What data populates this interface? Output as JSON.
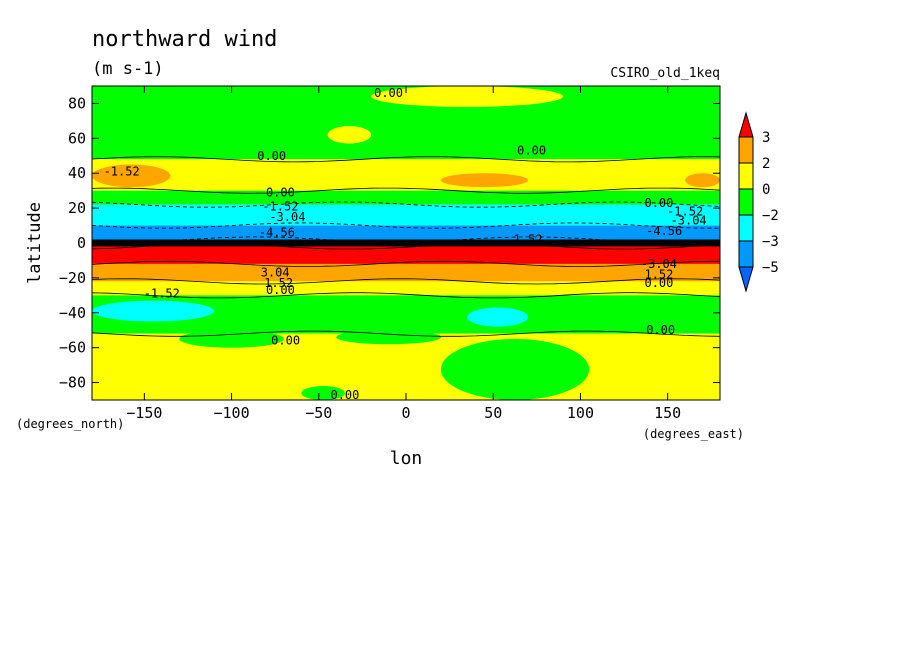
{
  "chart_data": {
    "type": "heatmap",
    "title": "northward wind",
    "units": "(m s-1)",
    "model": "CSIRO_old_1keq",
    "xlabel": "lon",
    "ylabel": "latitude",
    "x_units": "(degrees_east)",
    "y_units": "(degrees_north)",
    "xlim": [
      -180,
      180
    ],
    "ylim": [
      -90,
      90
    ],
    "x_ticks": [
      -150,
      -100,
      -50,
      0,
      50,
      100,
      150
    ],
    "y_ticks": [
      80,
      60,
      40,
      20,
      0,
      -20,
      -40,
      -60,
      -80
    ],
    "x_tick_labels": [
      "−150",
      "−100",
      "−50",
      "0",
      "50",
      "100",
      "150"
    ],
    "y_tick_labels": [
      "80",
      "60",
      "40",
      "20",
      "0",
      "−20",
      "−40",
      "−60",
      "−80"
    ],
    "colorbar": {
      "labels": [
        "3",
        "2",
        "0",
        "−2",
        "−3",
        "−5"
      ],
      "colors": [
        "#ff0000",
        "#ffa500",
        "#ffff00",
        "#00ff00",
        "#00ffff",
        "#0099ff",
        "#0066ff"
      ]
    },
    "bands": [
      {
        "lat": [
          48,
          90
        ],
        "color": "#00ff00"
      },
      {
        "lat": [
          30,
          48
        ],
        "color": "#ffff00"
      },
      {
        "lat": [
          22,
          30
        ],
        "color": "#00ff00"
      },
      {
        "lat": [
          10,
          22
        ],
        "color": "#00ffff"
      },
      {
        "lat": [
          2,
          10
        ],
        "color": "#0099ff"
      },
      {
        "lat": [
          -2,
          2
        ],
        "color": "#000000"
      },
      {
        "lat": [
          -12,
          -2
        ],
        "color": "#ff0000"
      },
      {
        "lat": [
          -22,
          -12
        ],
        "color": "#ffa500"
      },
      {
        "lat": [
          -30,
          -22
        ],
        "color": "#ffff00"
      },
      {
        "lat": [
          -52,
          -30
        ],
        "color": "#00ff00"
      },
      {
        "lat": [
          -90,
          -52
        ],
        "color": "#ffff00"
      }
    ],
    "patches": [
      {
        "lon": [
          -180,
          -135
        ],
        "lat": [
          32,
          45
        ],
        "color": "#ffa500"
      },
      {
        "lon": [
          20,
          70
        ],
        "lat": [
          32,
          40
        ],
        "color": "#ffa500"
      },
      {
        "lon": [
          160,
          180
        ],
        "lat": [
          32,
          40
        ],
        "color": "#ffa500"
      },
      {
        "lon": [
          -180,
          -110
        ],
        "lat": [
          -45,
          -33
        ],
        "color": "#00ffff"
      },
      {
        "lon": [
          35,
          70
        ],
        "lat": [
          -48,
          -37
        ],
        "color": "#00ffff"
      },
      {
        "lon": [
          -20,
          90
        ],
        "lat": [
          78,
          90
        ],
        "color": "#ffff00"
      },
      {
        "lon": [
          -45,
          -20
        ],
        "lat": [
          57,
          67
        ],
        "color": "#ffff00"
      },
      {
        "lon": [
          -130,
          -70
        ],
        "lat": [
          -60,
          -50
        ],
        "color": "#00ff00"
      },
      {
        "lon": [
          -40,
          20
        ],
        "lat": [
          -58,
          -50
        ],
        "color": "#00ff00"
      },
      {
        "lon": [
          -60,
          -35
        ],
        "lat": [
          -90,
          -82
        ],
        "color": "#00ff00"
      },
      {
        "lon": [
          20,
          105
        ],
        "lat": [
          -90,
          -55
        ],
        "color": "#00ff00"
      }
    ],
    "contour_labels": [
      {
        "text": "0.00",
        "lon": -10,
        "lat": 86
      },
      {
        "text": "0.00",
        "lon": -77,
        "lat": 50
      },
      {
        "text": "0.00",
        "lon": 72,
        "lat": 53
      },
      {
        "text": "-1.52",
        "lon": -163,
        "lat": 41
      },
      {
        "text": "0.00",
        "lon": -72,
        "lat": 29
      },
      {
        "text": "-1.52",
        "lon": -72,
        "lat": 21
      },
      {
        "text": "-3.04",
        "lon": -68,
        "lat": 15
      },
      {
        "text": "-4.56",
        "lon": -74,
        "lat": 6
      },
      {
        "text": "0.00",
        "lon": 145,
        "lat": 23
      },
      {
        "text": "-1.52",
        "lon": 160,
        "lat": 18
      },
      {
        "text": "-3.04",
        "lon": 162,
        "lat": 13
      },
      {
        "text": "-4.56",
        "lon": 148,
        "lat": 7
      },
      {
        "text": "1.52",
        "lon": 70,
        "lat": 2
      },
      {
        "text": "-3.04",
        "lon": 145,
        "lat": -12
      },
      {
        "text": "1.52",
        "lon": 145,
        "lat": -18
      },
      {
        "text": "3.04",
        "lon": -75,
        "lat": -17
      },
      {
        "text": "1.52",
        "lon": -73,
        "lat": -23
      },
      {
        "text": "0.00",
        "lon": -72,
        "lat": -27
      },
      {
        "text": "0.00",
        "lon": 145,
        "lat": -23
      },
      {
        "text": "-1.52",
        "lon": -140,
        "lat": -29
      },
      {
        "text": "0.00",
        "lon": -69,
        "lat": -56
      },
      {
        "text": "0.00",
        "lon": 146,
        "lat": -50
      },
      {
        "text": "0.00",
        "lon": -35,
        "lat": -87
      }
    ]
  }
}
